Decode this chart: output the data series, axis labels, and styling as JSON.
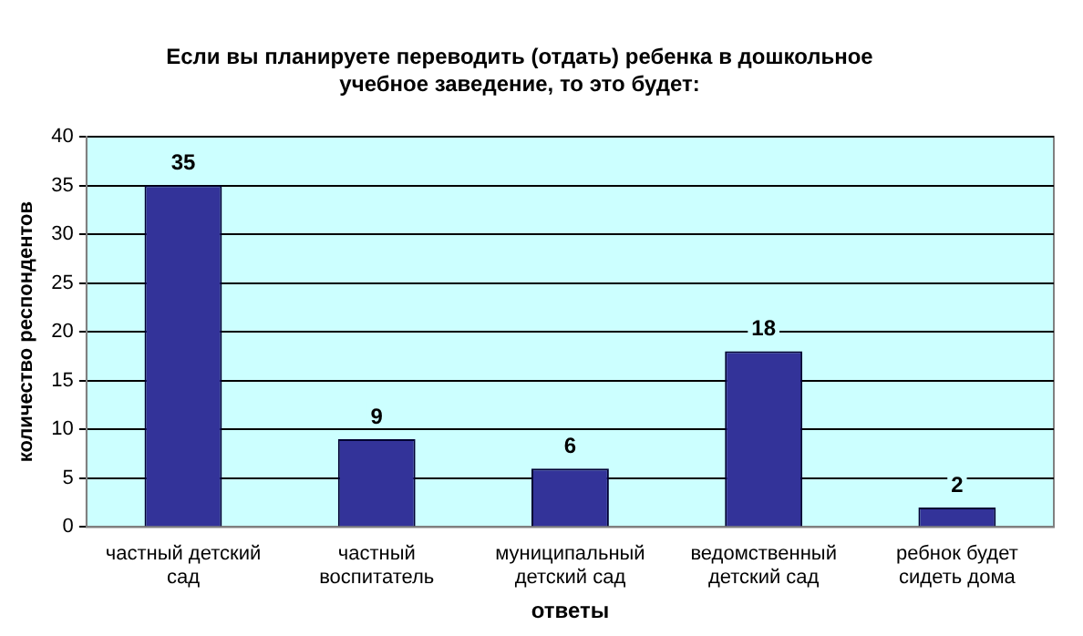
{
  "chart_data": {
    "type": "bar",
    "title": "Если вы планируете переводить  (отдать) ребенка в дошкольное учебное заведение, то это будет:",
    "xlabel": "ответы",
    "ylabel": "количество респондентов",
    "categories": [
      "частный детский сад",
      "частный воспитатель",
      "муниципальный детский сад",
      "ведомственный детский сад",
      "ребнок будет сидеть дома"
    ],
    "values": [
      35,
      9,
      6,
      18,
      2
    ],
    "color": "#333399",
    "ylim": [
      0,
      40
    ],
    "yticks": [
      0,
      5,
      10,
      15,
      20,
      25,
      30,
      35,
      40
    ],
    "grid": "y",
    "data_labels": true
  }
}
